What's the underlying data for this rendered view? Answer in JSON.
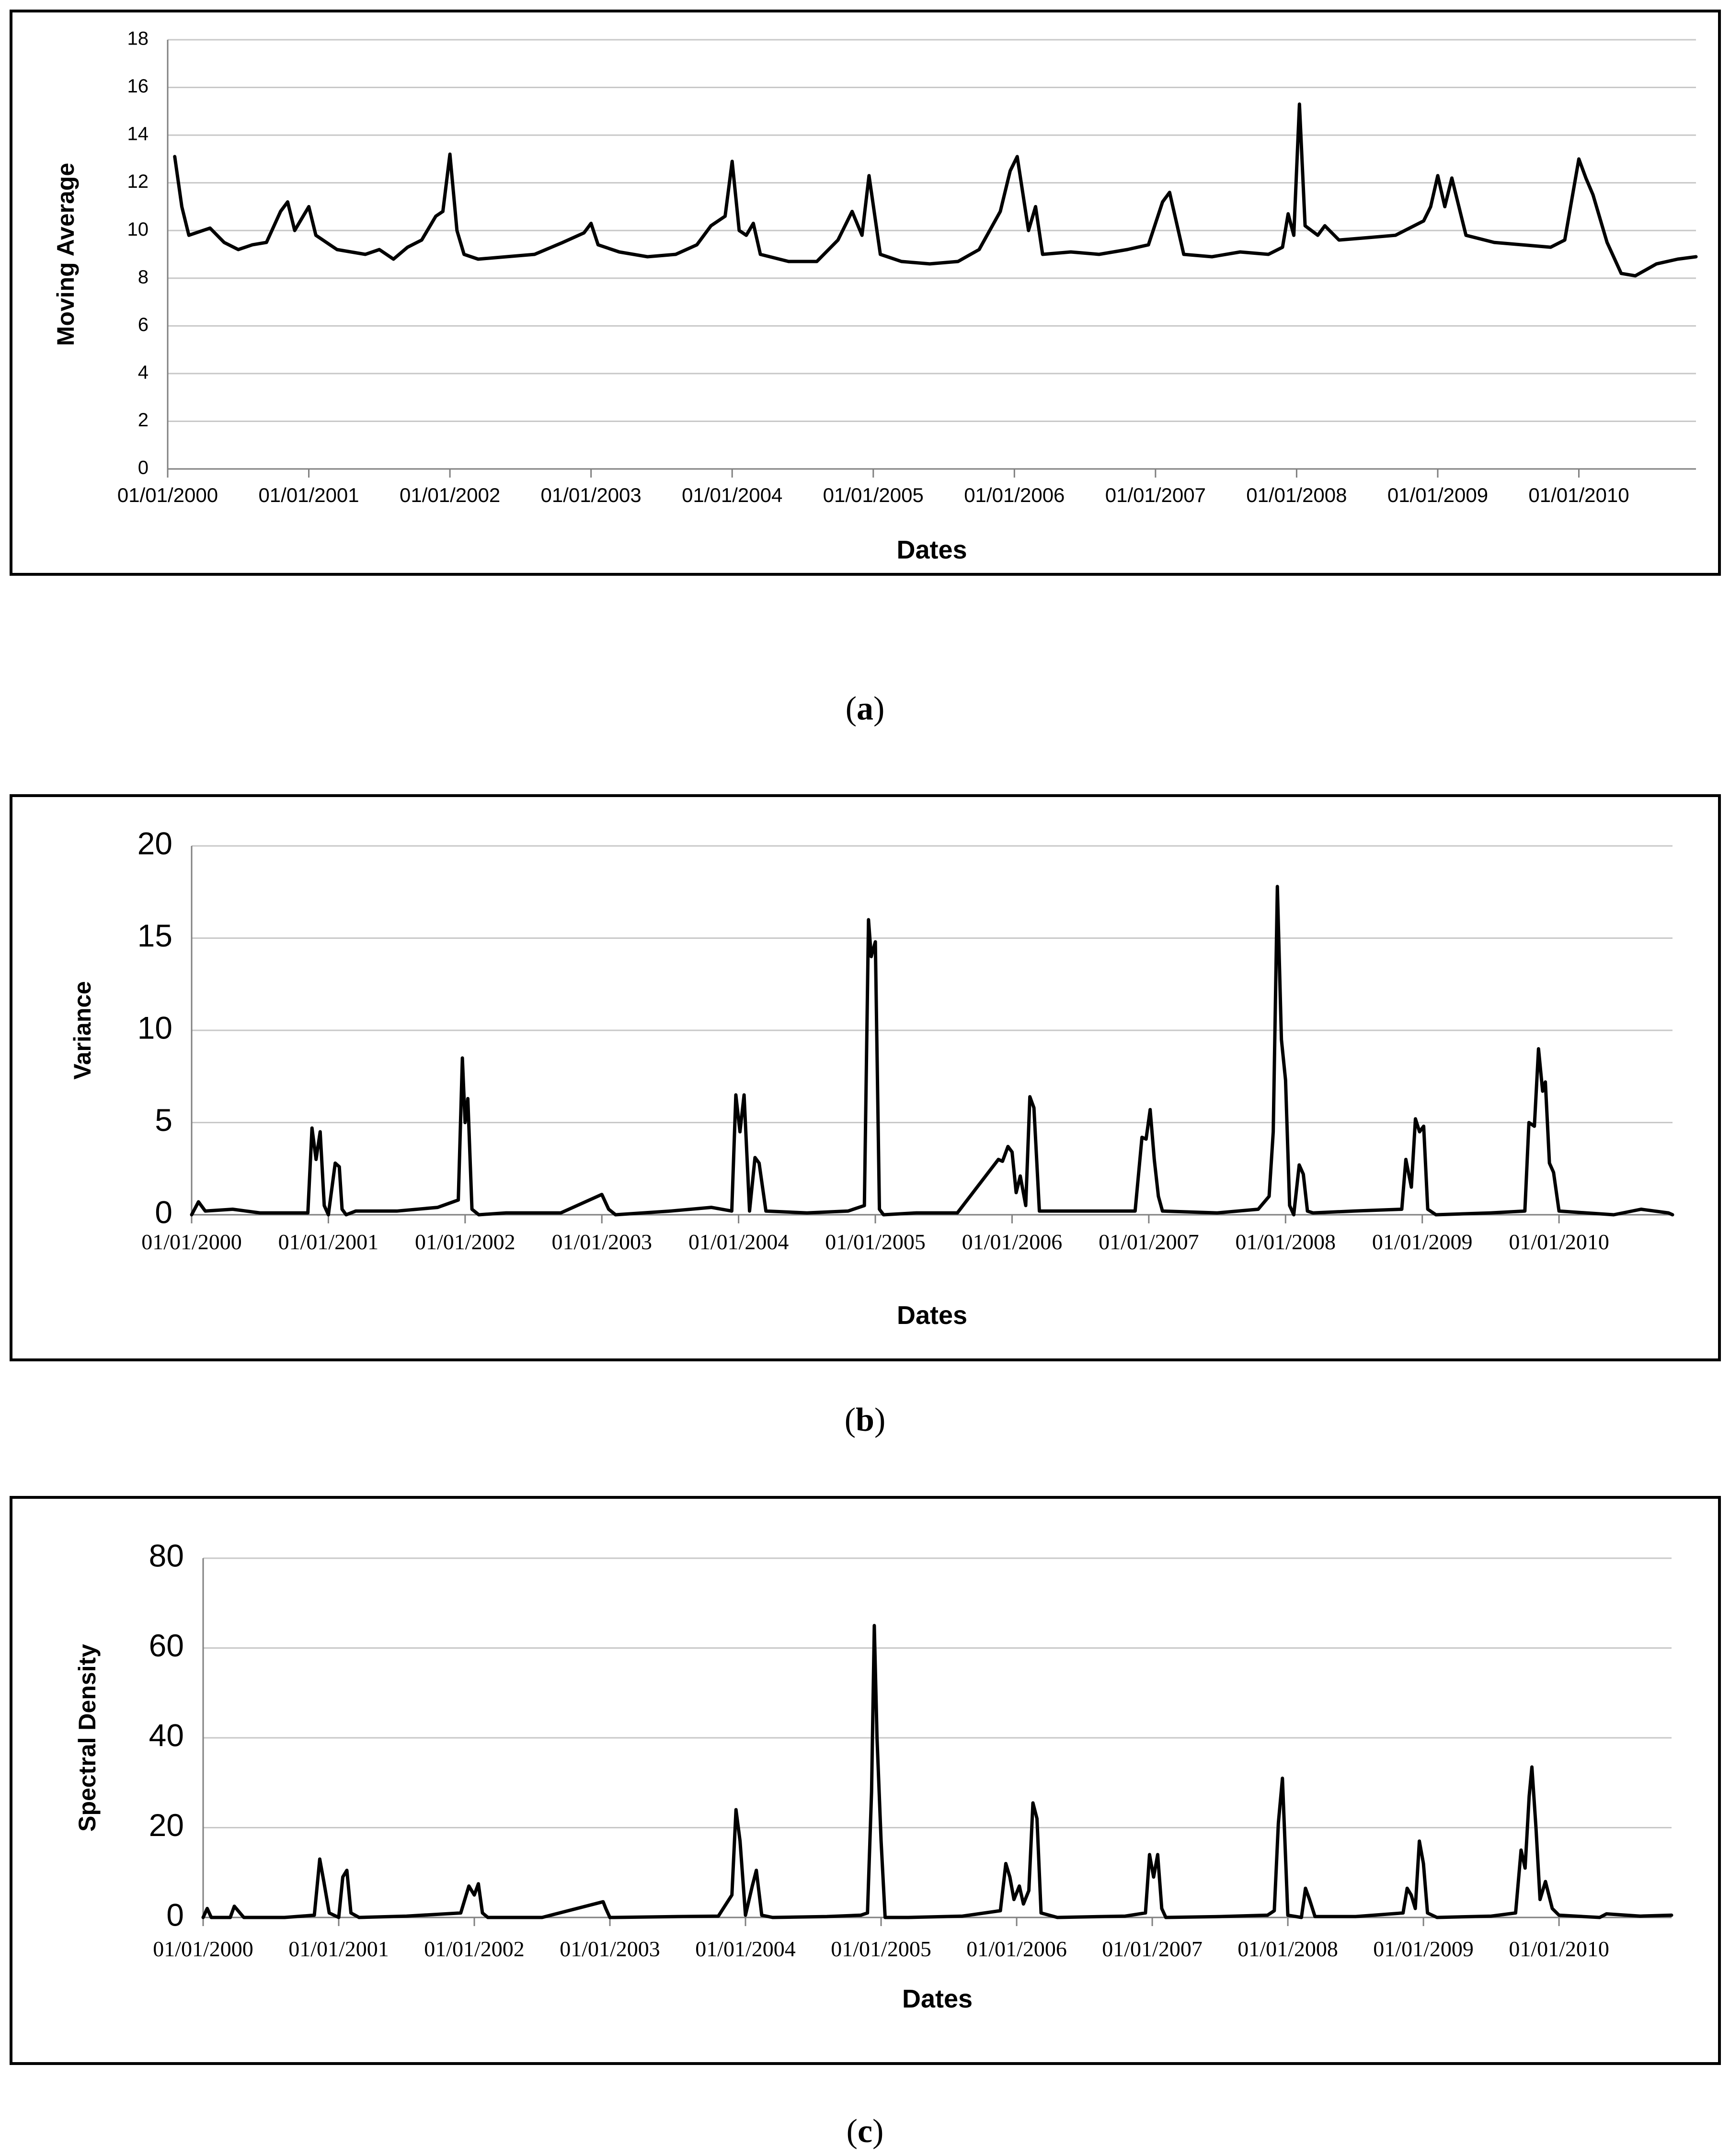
{
  "colors": {
    "line": "#000000",
    "grid": "#c8c8c8",
    "axis": "#808080"
  },
  "captions": [
    "a",
    "b",
    "c"
  ],
  "chart_data": [
    {
      "type": "line",
      "title": "",
      "xlabel": "Dates",
      "ylabel": "Moving Average",
      "xlim": [
        2000.0,
        2010.83
      ],
      "ylim": [
        0,
        18
      ],
      "yticks": [
        0,
        2,
        4,
        6,
        8,
        10,
        12,
        14,
        16,
        18
      ],
      "yticklabels": [
        "0",
        "2",
        "4",
        "6",
        "8",
        "10",
        "12",
        "14",
        "16",
        "18"
      ],
      "xticks": [
        2000,
        2001,
        2002,
        2003,
        2004,
        2005,
        2006,
        2007,
        2008,
        2009,
        2010
      ],
      "xticklabels": [
        "01/01/2000",
        "01/01/2001",
        "01/01/2002",
        "01/01/2003",
        "01/01/2004",
        "01/01/2005",
        "01/01/2006",
        "01/01/2007",
        "01/01/2008",
        "01/01/2009",
        "01/01/2010"
      ],
      "grid": true,
      "series": [
        {
          "name": "Moving Average",
          "x": [
            2000.05,
            2000.1,
            2000.15,
            2000.2,
            2000.3,
            2000.4,
            2000.5,
            2000.6,
            2000.7,
            2000.8,
            2000.85,
            2000.9,
            2000.95,
            2001.0,
            2001.05,
            2001.1,
            2001.15,
            2001.2,
            2001.3,
            2001.4,
            2001.5,
            2001.6,
            2001.7,
            2001.8,
            2001.9,
            2001.95,
            2002.0,
            2002.05,
            2002.1,
            2002.2,
            2002.4,
            2002.6,
            2002.8,
            2002.95,
            2003.0,
            2003.05,
            2003.2,
            2003.4,
            2003.6,
            2003.75,
            2003.85,
            2003.95,
            2004.0,
            2004.05,
            2004.1,
            2004.15,
            2004.2,
            2004.4,
            2004.6,
            2004.75,
            2004.85,
            2004.92,
            2004.97,
            2005.05,
            2005.2,
            2005.4,
            2005.6,
            2005.75,
            2005.9,
            2005.97,
            2006.02,
            2006.1,
            2006.15,
            2006.2,
            2006.4,
            2006.6,
            2006.8,
            2006.95,
            2007.05,
            2007.1,
            2007.2,
            2007.4,
            2007.6,
            2007.8,
            2007.9,
            2007.94,
            2007.98,
            2008.02,
            2008.06,
            2008.15,
            2008.2,
            2008.3,
            2008.5,
            2008.7,
            2008.9,
            2008.95,
            2009.0,
            2009.05,
            2009.1,
            2009.2,
            2009.4,
            2009.6,
            2009.8,
            2009.9,
            2009.95,
            2010.0,
            2010.05,
            2010.1,
            2010.2,
            2010.3,
            2010.4,
            2010.55,
            2010.7,
            2010.83
          ],
          "y": [
            13.1,
            11.0,
            9.8,
            9.9,
            10.1,
            9.5,
            9.2,
            9.4,
            9.5,
            10.8,
            11.2,
            10.0,
            10.5,
            11.0,
            9.8,
            9.6,
            9.4,
            9.2,
            9.1,
            9.0,
            9.2,
            8.8,
            9.3,
            9.6,
            10.6,
            10.8,
            13.2,
            10.0,
            9.0,
            8.8,
            8.9,
            9.0,
            9.5,
            9.9,
            10.3,
            9.4,
            9.1,
            8.9,
            9.0,
            9.4,
            10.2,
            10.6,
            12.9,
            10.0,
            9.8,
            10.3,
            9.0,
            8.7,
            8.7,
            9.6,
            10.8,
            9.8,
            12.3,
            9.0,
            8.7,
            8.6,
            8.7,
            9.2,
            10.8,
            12.5,
            13.1,
            10.0,
            11.0,
            9.0,
            9.1,
            9.0,
            9.2,
            9.4,
            11.2,
            11.6,
            9.0,
            8.9,
            9.1,
            9.0,
            9.3,
            10.7,
            9.8,
            15.3,
            10.2,
            9.8,
            10.2,
            9.6,
            9.7,
            9.8,
            10.4,
            11.0,
            12.3,
            11.0,
            12.2,
            9.8,
            9.5,
            9.4,
            9.3,
            9.6,
            11.3,
            13.0,
            12.2,
            11.5,
            9.5,
            8.2,
            8.1,
            8.6,
            8.8,
            8.9
          ]
        }
      ]
    },
    {
      "type": "line",
      "title": "",
      "xlabel": "Dates",
      "ylabel": "Variance",
      "xlim": [
        2000.0,
        2010.83
      ],
      "ylim": [
        0,
        20
      ],
      "yticks": [
        0,
        5,
        10,
        15,
        20
      ],
      "yticklabels": [
        "0",
        "5",
        "10",
        "15",
        "20"
      ],
      "xticks": [
        2000,
        2001,
        2002,
        2003,
        2004,
        2005,
        2006,
        2007,
        2008,
        2009,
        2010
      ],
      "xticklabels": [
        "01/01/2000",
        "01/01/2001",
        "01/01/2002",
        "01/01/2003",
        "01/01/2004",
        "01/01/2005",
        "01/01/2006",
        "01/01/2007",
        "01/01/2008",
        "01/01/2009",
        "01/01/2010"
      ],
      "grid": true,
      "series": [
        {
          "name": "Variance",
          "x": [
            2000.0,
            2000.05,
            2000.1,
            2000.3,
            2000.5,
            2000.85,
            2000.88,
            2000.91,
            2000.94,
            2000.97,
            2001.0,
            2001.05,
            2001.08,
            2001.1,
            2001.13,
            2001.2,
            2001.5,
            2001.8,
            2001.95,
            2001.98,
            2002.0,
            2002.02,
            2002.05,
            2002.1,
            2002.3,
            2002.7,
            2003.0,
            2003.05,
            2003.1,
            2003.5,
            2003.8,
            2003.95,
            2003.98,
            2004.01,
            2004.04,
            2004.08,
            2004.12,
            2004.15,
            2004.2,
            2004.5,
            2004.8,
            2004.92,
            2004.95,
            2004.97,
            2005.0,
            2005.03,
            2005.06,
            2005.3,
            2005.6,
            2005.9,
            2005.93,
            2005.97,
            2006.0,
            2006.03,
            2006.06,
            2006.1,
            2006.13,
            2006.16,
            2006.2,
            2006.5,
            2006.9,
            2006.95,
            2006.98,
            2007.01,
            2007.04,
            2007.07,
            2007.1,
            2007.5,
            2007.8,
            2007.88,
            2007.91,
            2007.94,
            2007.97,
            2008.0,
            2008.03,
            2008.06,
            2008.1,
            2008.13,
            2008.16,
            2008.2,
            2008.5,
            2008.85,
            2008.88,
            2008.92,
            2008.95,
            2008.98,
            2009.01,
            2009.04,
            2009.1,
            2009.5,
            2009.75,
            2009.78,
            2009.82,
            2009.85,
            2009.88,
            2009.9,
            2009.93,
            2009.96,
            2010.0,
            2010.4,
            2010.6,
            2010.8,
            2010.83
          ],
          "y": [
            0,
            0.7,
            0.2,
            0.3,
            0.1,
            0.1,
            4.7,
            3.0,
            4.5,
            0.5,
            0,
            2.8,
            2.6,
            0.3,
            0,
            0.2,
            0.2,
            0.4,
            0.8,
            8.5,
            5.0,
            6.3,
            0.3,
            0,
            0.1,
            0.1,
            1.1,
            0.3,
            0,
            0.2,
            0.4,
            0.2,
            6.5,
            4.5,
            6.5,
            0.2,
            3.1,
            2.8,
            0.2,
            0.1,
            0.2,
            0.5,
            16.0,
            14.0,
            14.8,
            0.3,
            0,
            0.1,
            0.1,
            3.0,
            2.9,
            3.7,
            3.4,
            1.2,
            2.1,
            0.5,
            6.4,
            5.8,
            0.2,
            0.2,
            0.2,
            4.2,
            4.1,
            5.7,
            3.0,
            1.0,
            0.2,
            0.1,
            0.3,
            1.0,
            4.5,
            17.8,
            9.5,
            7.3,
            0.5,
            0,
            2.7,
            2.2,
            0.2,
            0.1,
            0.2,
            0.3,
            3.0,
            1.5,
            5.2,
            4.5,
            4.8,
            0.3,
            0,
            0.1,
            0.2,
            5.0,
            4.8,
            9.0,
            6.7,
            7.2,
            2.8,
            2.3,
            0.2,
            0,
            0.3,
            0.1,
            0
          ]
        }
      ]
    },
    {
      "type": "line",
      "title": "",
      "xlabel": "Dates",
      "ylabel": "Spectral Density",
      "xlim": [
        2000.0,
        2010.83
      ],
      "ylim": [
        0,
        80
      ],
      "yticks": [
        0,
        20,
        40,
        60,
        80
      ],
      "yticklabels": [
        "0",
        "20",
        "40",
        "60",
        "80"
      ],
      "xticks": [
        2000,
        2001,
        2002,
        2003,
        2004,
        2005,
        2006,
        2007,
        2008,
        2009,
        2010
      ],
      "xticklabels": [
        "01/01/2000",
        "01/01/2001",
        "01/01/2002",
        "01/01/2003",
        "01/01/2004",
        "01/01/2005",
        "01/01/2006",
        "01/01/2007",
        "01/01/2008",
        "01/01/2009",
        "01/01/2010"
      ],
      "grid": true,
      "series": [
        {
          "name": "Spectral Density",
          "x": [
            2000.0,
            2000.03,
            2000.06,
            2000.2,
            2000.23,
            2000.3,
            2000.6,
            2000.82,
            2000.86,
            2000.89,
            2000.93,
            2001.0,
            2001.03,
            2001.06,
            2001.09,
            2001.15,
            2001.5,
            2001.9,
            2001.93,
            2001.96,
            2002.0,
            2002.03,
            2002.06,
            2002.1,
            2002.5,
            2002.95,
            2002.97,
            2003.0,
            2003.03,
            2003.5,
            2003.8,
            2003.9,
            2003.93,
            2003.96,
            2004.0,
            2004.05,
            2004.08,
            2004.12,
            2004.2,
            2004.6,
            2004.85,
            2004.9,
            2004.93,
            2004.95,
            2004.97,
            2005.0,
            2005.03,
            2005.2,
            2005.6,
            2005.88,
            2005.92,
            2005.95,
            2005.98,
            2006.02,
            2006.05,
            2006.09,
            2006.12,
            2006.15,
            2006.18,
            2006.3,
            2006.8,
            2006.95,
            2006.98,
            2007.01,
            2007.04,
            2007.07,
            2007.1,
            2007.5,
            2007.85,
            2007.9,
            2007.93,
            2007.96,
            2008.0,
            2008.1,
            2008.13,
            2008.16,
            2008.2,
            2008.5,
            2008.85,
            2008.88,
            2008.91,
            2008.94,
            2008.97,
            2009.0,
            2009.03,
            2009.1,
            2009.5,
            2009.68,
            2009.72,
            2009.75,
            2009.78,
            2009.8,
            2009.83,
            2009.86,
            2009.9,
            2009.95,
            2010.0,
            2010.3,
            2010.35,
            2010.6,
            2010.83
          ],
          "y": [
            0,
            2.0,
            0,
            0,
            2.5,
            0,
            0,
            0.5,
            13.0,
            8.0,
            1.0,
            0,
            9.0,
            10.5,
            1.0,
            0,
            0.3,
            1.0,
            4.0,
            7.0,
            5.0,
            7.5,
            1.0,
            0,
            0,
            3.5,
            2.0,
            0,
            0,
            0.2,
            0.3,
            5.0,
            24.0,
            17.0,
            0.5,
            7.0,
            10.5,
            0.5,
            0,
            0.2,
            0.5,
            1.0,
            28.0,
            65.0,
            40.0,
            17.0,
            0,
            0,
            0.3,
            1.5,
            12.0,
            9.0,
            4.0,
            7.0,
            3.0,
            6.0,
            25.5,
            22.0,
            1.0,
            0,
            0.3,
            1.0,
            14.0,
            9.0,
            14.0,
            2.0,
            0,
            0.2,
            0.5,
            1.5,
            21.0,
            31.0,
            0.5,
            0,
            6.5,
            4.0,
            0.2,
            0.2,
            1.0,
            6.5,
            5.0,
            2.0,
            17.0,
            12.0,
            1.0,
            0,
            0.3,
            1.0,
            15.0,
            11.0,
            27.0,
            33.5,
            20.0,
            4.0,
            8.0,
            2.0,
            0.5,
            0,
            0.8,
            0.3,
            0.5
          ]
        }
      ]
    }
  ]
}
